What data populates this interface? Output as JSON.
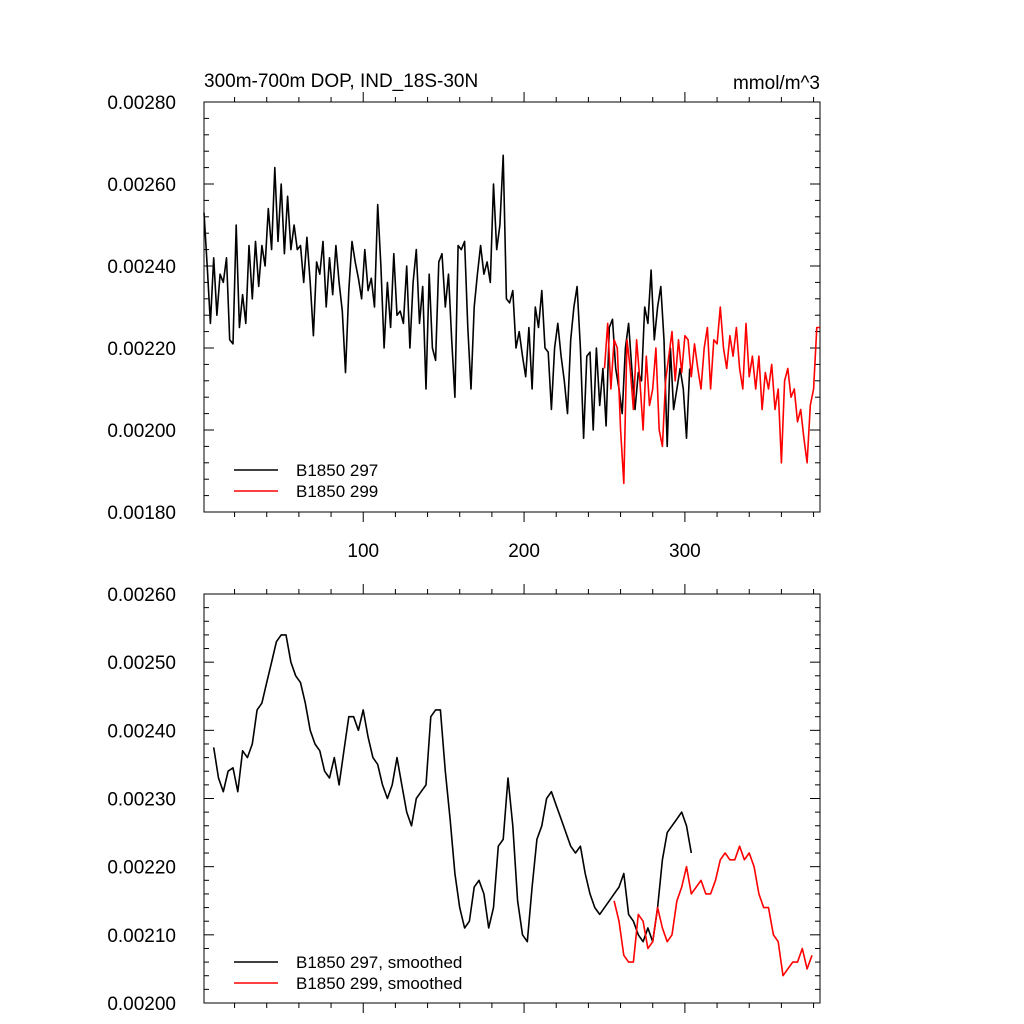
{
  "chart_data": [
    {
      "type": "line",
      "title": "300m-700m DOP, IND_18S-30N",
      "units": "mmol/m^3",
      "xlim": [
        1,
        384
      ],
      "ylim": [
        0.0018,
        0.0028
      ],
      "xticks": [
        100,
        200,
        300
      ],
      "yticks": [
        0.0018,
        0.002,
        0.0022,
        0.0024,
        0.0026,
        0.0028
      ],
      "ytick_labels": [
        "0.00180",
        "0.00200",
        "0.00220",
        "0.00240",
        "0.00260",
        "0.00280"
      ],
      "series": [
        {
          "name": "B1850 297",
          "color": "#000000",
          "x": [
            1,
            3,
            5,
            7,
            9,
            11,
            13,
            15,
            17,
            19,
            21,
            23,
            25,
            27,
            29,
            31,
            33,
            35,
            37,
            39,
            41,
            43,
            45,
            47,
            49,
            51,
            53,
            55,
            57,
            59,
            61,
            63,
            65,
            67,
            69,
            71,
            73,
            75,
            77,
            79,
            81,
            83,
            85,
            87,
            89,
            91,
            93,
            95,
            97,
            99,
            101,
            103,
            105,
            107,
            109,
            111,
            113,
            115,
            117,
            119,
            121,
            123,
            125,
            127,
            129,
            131,
            133,
            135,
            137,
            139,
            141,
            143,
            145,
            147,
            149,
            151,
            153,
            155,
            157,
            159,
            161,
            163,
            165,
            167,
            169,
            171,
            173,
            175,
            177,
            179,
            181,
            183,
            185,
            187,
            189,
            191,
            193,
            195,
            197,
            199,
            201,
            203,
            205,
            207,
            209,
            211,
            213,
            215,
            217,
            219,
            221,
            223,
            225,
            227,
            229,
            231,
            233,
            235,
            237,
            239,
            241,
            243,
            245,
            247,
            249,
            251,
            253,
            255,
            257,
            259,
            261,
            263,
            265,
            267,
            269,
            271,
            273,
            275,
            277,
            279,
            281,
            283,
            285,
            287,
            289,
            291,
            293,
            295,
            297,
            299,
            301,
            303
          ],
          "y": [
            0.00253,
            0.0024,
            0.00226,
            0.00242,
            0.00228,
            0.00238,
            0.00236,
            0.00242,
            0.00222,
            0.00221,
            0.0025,
            0.00225,
            0.00233,
            0.00226,
            0.00245,
            0.00232,
            0.00246,
            0.00235,
            0.00245,
            0.0024,
            0.00254,
            0.00244,
            0.00264,
            0.00246,
            0.0026,
            0.00243,
            0.00257,
            0.00244,
            0.0025,
            0.00244,
            0.00245,
            0.00236,
            0.00247,
            0.00236,
            0.00223,
            0.00241,
            0.00238,
            0.00246,
            0.0023,
            0.00242,
            0.00233,
            0.00245,
            0.00236,
            0.00229,
            0.00214,
            0.00234,
            0.00246,
            0.00241,
            0.00237,
            0.00232,
            0.00244,
            0.00234,
            0.00237,
            0.0023,
            0.00255,
            0.0024,
            0.0022,
            0.00236,
            0.00225,
            0.00243,
            0.00228,
            0.00229,
            0.00226,
            0.0024,
            0.0022,
            0.00236,
            0.00244,
            0.00226,
            0.00235,
            0.0021,
            0.00238,
            0.0022,
            0.00217,
            0.00241,
            0.00243,
            0.0023,
            0.00238,
            0.00222,
            0.00208,
            0.00245,
            0.00244,
            0.00246,
            0.00225,
            0.0021,
            0.0023,
            0.00238,
            0.00245,
            0.00238,
            0.00241,
            0.00236,
            0.0026,
            0.00244,
            0.0025,
            0.00267,
            0.00232,
            0.00231,
            0.00234,
            0.0022,
            0.00224,
            0.00218,
            0.00213,
            0.00225,
            0.0021,
            0.0023,
            0.00225,
            0.00234,
            0.0022,
            0.00219,
            0.00205,
            0.0022,
            0.00226,
            0.00218,
            0.00212,
            0.00204,
            0.00222,
            0.0023,
            0.00235,
            0.0022,
            0.00198,
            0.00218,
            0.00219,
            0.002,
            0.0022,
            0.00206,
            0.00215,
            0.00201,
            0.00225,
            0.00227,
            0.00215,
            0.0021,
            0.00204,
            0.0022,
            0.00226,
            0.00215,
            0.00205,
            0.00214,
            0.00212,
            0.0023,
            0.00226,
            0.00239,
            0.00222,
            0.0023,
            0.00235,
            0.00222,
            0.00196,
            0.0022,
            0.00205,
            0.0021,
            0.00215,
            0.0021,
            0.00198,
            0.00215
          ]
        },
        {
          "name": "B1850 299",
          "color": "#ff0000",
          "x": [
            250,
            252,
            254,
            256,
            258,
            260,
            262,
            264,
            266,
            268,
            270,
            272,
            274,
            276,
            278,
            280,
            282,
            284,
            286,
            288,
            290,
            292,
            294,
            296,
            298,
            300,
            302,
            304,
            306,
            308,
            310,
            312,
            314,
            316,
            318,
            320,
            322,
            324,
            326,
            328,
            330,
            332,
            334,
            336,
            338,
            340,
            342,
            344,
            346,
            348,
            350,
            352,
            354,
            356,
            358,
            360,
            362,
            364,
            366,
            368,
            370,
            372,
            374,
            376,
            378,
            380,
            382,
            384
          ],
          "y": [
            0.00215,
            0.00226,
            0.0021,
            0.00222,
            0.0022,
            0.002,
            0.00187,
            0.00222,
            0.00215,
            0.00205,
            0.00222,
            0.00212,
            0.002,
            0.00218,
            0.00206,
            0.0021,
            0.0022,
            0.002,
            0.00196,
            0.00212,
            0.00218,
            0.00224,
            0.00212,
            0.00222,
            0.00214,
            0.00223,
            0.00222,
            0.00213,
            0.00221,
            0.00215,
            0.0021,
            0.0022,
            0.00225,
            0.0021,
            0.00222,
            0.00221,
            0.0023,
            0.0022,
            0.00215,
            0.00223,
            0.00218,
            0.00225,
            0.00215,
            0.0021,
            0.00226,
            0.00213,
            0.00218,
            0.0021,
            0.00218,
            0.00205,
            0.00214,
            0.0021,
            0.00216,
            0.00205,
            0.0021,
            0.00192,
            0.00212,
            0.00215,
            0.00208,
            0.0021,
            0.00202,
            0.00205,
            0.00198,
            0.00192,
            0.00206,
            0.0021,
            0.00225,
            0.00225
          ]
        }
      ]
    },
    {
      "type": "line",
      "xlim": [
        1,
        384
      ],
      "ylim": [
        0.002,
        0.0026
      ],
      "xticks": [
        100,
        200,
        300
      ],
      "yticks": [
        0.002,
        0.0021,
        0.0022,
        0.0023,
        0.0024,
        0.0025,
        0.0026
      ],
      "ytick_labels": [
        "0.00200",
        "0.00210",
        "0.00220",
        "0.00230",
        "0.00240",
        "0.00250",
        "0.00260"
      ],
      "series": [
        {
          "name": "B1850 297, smoothed",
          "color": "#000000",
          "x": [
            7,
            10,
            13,
            16,
            19,
            22,
            25,
            28,
            31,
            34,
            37,
            40,
            43,
            46,
            49,
            52,
            55,
            58,
            61,
            64,
            67,
            70,
            73,
            76,
            79,
            82,
            85,
            88,
            91,
            94,
            97,
            100,
            103,
            106,
            109,
            112,
            115,
            118,
            121,
            124,
            127,
            130,
            133,
            136,
            139,
            142,
            145,
            148,
            151,
            154,
            157,
            160,
            163,
            166,
            169,
            172,
            175,
            178,
            181,
            184,
            187,
            190,
            193,
            196,
            199,
            202,
            205,
            208,
            211,
            214,
            217,
            220,
            223,
            226,
            229,
            232,
            235,
            238,
            241,
            244,
            247,
            250,
            253,
            256,
            259,
            262,
            265,
            268,
            271,
            274,
            277,
            280,
            283,
            286,
            289,
            292,
            295,
            298,
            301,
            304
          ],
          "y": [
            0.002375,
            0.00233,
            0.00231,
            0.00234,
            0.002345,
            0.00231,
            0.00237,
            0.00236,
            0.00238,
            0.00243,
            0.00244,
            0.00247,
            0.0025,
            0.00253,
            0.00254,
            0.00254,
            0.0025,
            0.00248,
            0.00247,
            0.00244,
            0.0024,
            0.00238,
            0.00237,
            0.00234,
            0.00233,
            0.00236,
            0.00232,
            0.00237,
            0.00242,
            0.00242,
            0.0024,
            0.00243,
            0.00239,
            0.00236,
            0.00235,
            0.00232,
            0.0023,
            0.00232,
            0.00236,
            0.00232,
            0.00228,
            0.00226,
            0.0023,
            0.00231,
            0.00232,
            0.00242,
            0.00243,
            0.00243,
            0.00234,
            0.00227,
            0.00219,
            0.00214,
            0.00211,
            0.00212,
            0.00217,
            0.00218,
            0.00216,
            0.00211,
            0.00214,
            0.00223,
            0.00224,
            0.00233,
            0.00226,
            0.00215,
            0.0021,
            0.00209,
            0.00217,
            0.00224,
            0.00226,
            0.0023,
            0.00231,
            0.00229,
            0.00227,
            0.00225,
            0.00223,
            0.00222,
            0.00223,
            0.00219,
            0.00216,
            0.00214,
            0.00213,
            0.00214,
            0.00215,
            0.00216,
            0.00217,
            0.00219,
            0.00213,
            0.00212,
            0.0021,
            0.00209,
            0.00211,
            0.00209,
            0.00214,
            0.00221,
            0.00225,
            0.00226,
            0.00227,
            0.00228,
            0.00226,
            0.00222
          ]
        },
        {
          "name": "B1850 299, smoothed",
          "color": "#ff0000",
          "x": [
            256,
            259,
            262,
            265,
            268,
            271,
            274,
            277,
            280,
            283,
            286,
            289,
            292,
            295,
            298,
            301,
            304,
            307,
            310,
            313,
            316,
            319,
            322,
            325,
            328,
            331,
            334,
            337,
            340,
            343,
            346,
            349,
            352,
            355,
            358,
            361,
            364,
            367,
            370,
            373,
            376,
            379
          ],
          "y": [
            0.00215,
            0.00212,
            0.00207,
            0.00206,
            0.00206,
            0.00213,
            0.00212,
            0.00208,
            0.00209,
            0.00214,
            0.00211,
            0.00209,
            0.0021,
            0.00215,
            0.00217,
            0.0022,
            0.00216,
            0.00217,
            0.00218,
            0.00216,
            0.00216,
            0.00218,
            0.00221,
            0.00222,
            0.00221,
            0.00221,
            0.00223,
            0.00221,
            0.00222,
            0.0022,
            0.00216,
            0.00214,
            0.00214,
            0.0021,
            0.00209,
            0.00204,
            0.00205,
            0.00206,
            0.00206,
            0.00208,
            0.00205,
            0.00207
          ]
        }
      ]
    }
  ]
}
